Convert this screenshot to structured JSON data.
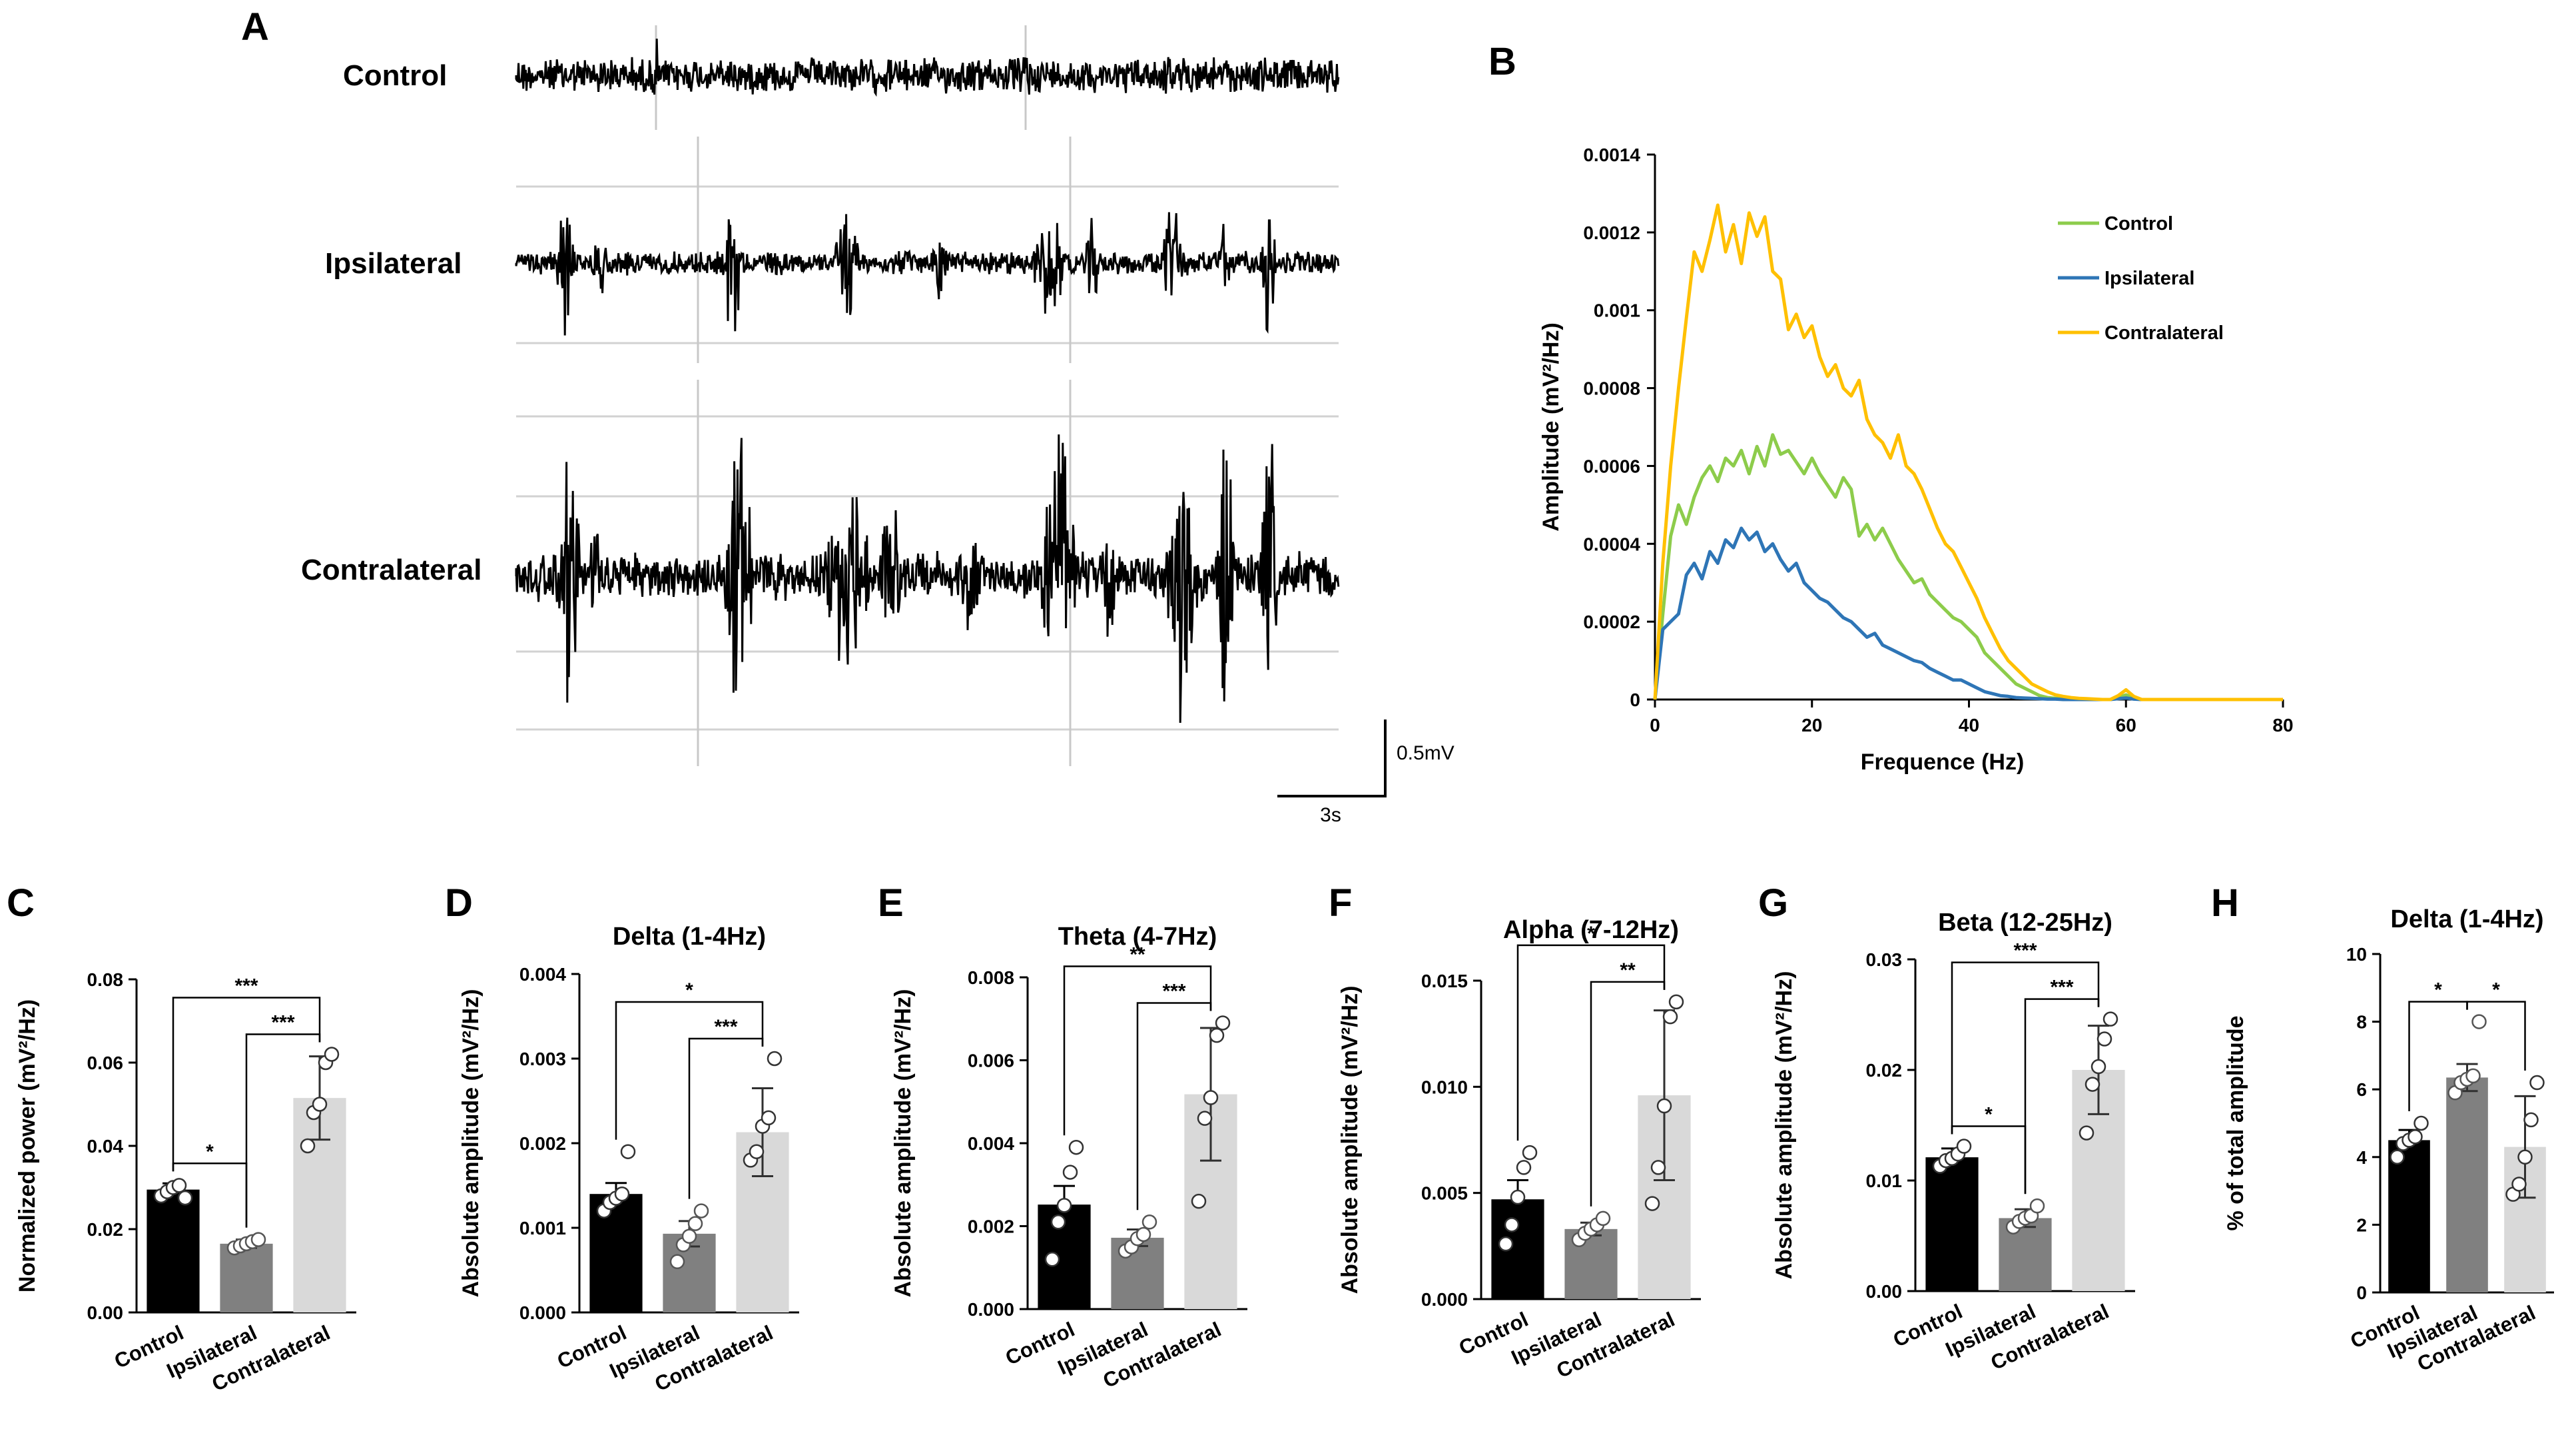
{
  "panels": {
    "A": {
      "letter": "A",
      "traces": [
        "Control",
        "Ipsilateral",
        "Contralateral"
      ],
      "scale_bar": {
        "vertical": "0.5mV",
        "horizontal": "3s"
      }
    },
    "B": {
      "letter": "B",
      "chart_data": {
        "type": "line",
        "title": "",
        "xlabel": "Frequence (Hz)",
        "ylabel": "Amplitude (mV²/Hz)",
        "xlim": [
          0,
          80
        ],
        "ylim": [
          0,
          0.0014
        ],
        "xticks": [
          "0",
          "20",
          "40",
          "60",
          "80"
        ],
        "yticks": [
          "0",
          "0.0002",
          "0.0004",
          "0.0006",
          "0.0008",
          "0.001",
          "0.0012",
          "0.0014"
        ],
        "legend_position": "top-right",
        "x": [
          0,
          1,
          2,
          3,
          4,
          5,
          6,
          7,
          8,
          9,
          10,
          11,
          12,
          13,
          14,
          15,
          16,
          17,
          18,
          19,
          20,
          21,
          22,
          23,
          24,
          25,
          26,
          27,
          28,
          29,
          30,
          31,
          32,
          33,
          34,
          35,
          36,
          37,
          38,
          39,
          40,
          41,
          42,
          43,
          44,
          45,
          46,
          47,
          48,
          49,
          50,
          51,
          52,
          53,
          54,
          55,
          56,
          57,
          58,
          59,
          60,
          61,
          62,
          64,
          66,
          70,
          75,
          80
        ],
        "series": [
          {
            "name": "Control",
            "color": "#8dcc4b",
            "values": [
              0,
              0.00022,
              0.00042,
              0.0005,
              0.00045,
              0.00052,
              0.00057,
              0.0006,
              0.00056,
              0.00062,
              0.0006,
              0.00064,
              0.00058,
              0.00065,
              0.0006,
              0.00068,
              0.00063,
              0.00064,
              0.00061,
              0.00058,
              0.00062,
              0.00058,
              0.00055,
              0.00052,
              0.00057,
              0.00054,
              0.00042,
              0.00045,
              0.00041,
              0.00044,
              0.0004,
              0.00036,
              0.00033,
              0.0003,
              0.00031,
              0.00027,
              0.00025,
              0.00023,
              0.00021,
              0.0002,
              0.00018,
              0.00016,
              0.00012,
              0.0001,
              8e-05,
              6e-05,
              4e-05,
              3e-05,
              2e-05,
              1e-05,
              5e-06,
              3e-06,
              2e-06,
              1e-06,
              1e-06,
              0,
              0,
              0,
              0,
              5e-06,
              1.2e-05,
              4e-06,
              0,
              0,
              0,
              0,
              0,
              0
            ]
          },
          {
            "name": "Ipsilateral",
            "color": "#2e75b6",
            "values": [
              0,
              0.00018,
              0.0002,
              0.00022,
              0.00032,
              0.00035,
              0.00031,
              0.00038,
              0.00035,
              0.00041,
              0.00039,
              0.00044,
              0.00041,
              0.00043,
              0.00038,
              0.0004,
              0.00036,
              0.00033,
              0.00035,
              0.0003,
              0.00028,
              0.00026,
              0.00025,
              0.00023,
              0.00021,
              0.0002,
              0.00018,
              0.00016,
              0.00017,
              0.00014,
              0.00013,
              0.00012,
              0.00011,
              0.0001,
              9.5e-05,
              8e-05,
              7e-05,
              6e-05,
              5e-05,
              5e-05,
              4e-05,
              3e-05,
              2e-05,
              1.5e-05,
              1e-05,
              8e-06,
              5e-06,
              4e-06,
              3e-06,
              2e-06,
              1e-06,
              1e-06,
              0,
              0,
              0,
              0,
              0,
              0,
              0,
              2e-06,
              4e-06,
              1e-06,
              0,
              0,
              0,
              0,
              0,
              0
            ]
          },
          {
            "name": "Contralateral",
            "color": "#ffc000",
            "values": [
              0,
              0.00035,
              0.0006,
              0.0008,
              0.00098,
              0.00115,
              0.0011,
              0.00118,
              0.00127,
              0.00115,
              0.00122,
              0.00112,
              0.00125,
              0.00119,
              0.00124,
              0.0011,
              0.00108,
              0.00095,
              0.00099,
              0.00093,
              0.00096,
              0.00088,
              0.00083,
              0.00086,
              0.0008,
              0.00078,
              0.00082,
              0.00072,
              0.00068,
              0.00066,
              0.00062,
              0.00068,
              0.0006,
              0.00058,
              0.00054,
              0.00049,
              0.00044,
              0.0004,
              0.00038,
              0.00034,
              0.0003,
              0.00026,
              0.00021,
              0.00017,
              0.00013,
              0.0001,
              8e-05,
              6e-05,
              4e-05,
              3e-05,
              2e-05,
              1.2e-05,
              8e-06,
              5e-06,
              3e-06,
              2e-06,
              1e-06,
              0,
              0,
              1e-05,
              2.5e-05,
              8e-06,
              0,
              0,
              0,
              0,
              0,
              0
            ]
          }
        ]
      }
    },
    "C": {
      "letter": "C",
      "chart_data": {
        "type": "bar",
        "title": "",
        "ylabel": "Normalized power (mV²/Hz)",
        "ylim": [
          0,
          0.08
        ],
        "yticks": [
          "0.00",
          "0.02",
          "0.04",
          "0.06",
          "0.08"
        ],
        "categories": [
          "Control",
          "Ipsilateral",
          "Contralateral"
        ],
        "colors": [
          "#000000",
          "#808080",
          "#d9d9d9"
        ],
        "values": [
          0.0295,
          0.0165,
          0.0515
        ],
        "errors": [
          0.0015,
          0.001,
          0.01
        ],
        "points": [
          [
            0.028,
            0.029,
            0.03,
            0.0305,
            0.0275
          ],
          [
            0.0155,
            0.016,
            0.0165,
            0.017,
            0.0175
          ],
          [
            0.04,
            0.048,
            0.05,
            0.06,
            0.062
          ]
        ],
        "significance": [
          {
            "from": 0,
            "to": 1,
            "label": "*"
          },
          {
            "from": 0,
            "to": 2,
            "label": "***"
          },
          {
            "from": 1,
            "to": 2,
            "label": "***"
          }
        ]
      }
    },
    "D": {
      "letter": "D",
      "chart_data": {
        "type": "bar",
        "title": "Delta (1-4Hz)",
        "ylabel": "Absolute amplitude (mV²/Hz)",
        "ylim": [
          0,
          0.004
        ],
        "yticks": [
          "0.000",
          "0.001",
          "0.002",
          "0.003",
          "0.004"
        ],
        "categories": [
          "Control",
          "Ipsilateral",
          "Contralateral"
        ],
        "colors": [
          "#000000",
          "#808080",
          "#d9d9d9"
        ],
        "values": [
          0.0014,
          0.00093,
          0.00213
        ],
        "errors": [
          0.00013,
          0.00015,
          0.00052
        ],
        "points": [
          [
            0.0012,
            0.0013,
            0.00135,
            0.0014,
            0.0019
          ],
          [
            0.0006,
            0.0008,
            0.0009,
            0.00105,
            0.0012
          ],
          [
            0.0018,
            0.0019,
            0.0022,
            0.0023,
            0.003
          ]
        ],
        "significance": [
          {
            "from": 0,
            "to": 2,
            "label": "*"
          },
          {
            "from": 1,
            "to": 2,
            "label": "***"
          }
        ]
      }
    },
    "E": {
      "letter": "E",
      "chart_data": {
        "type": "bar",
        "title": "Theta (4-7Hz)",
        "ylabel": "Absolute amplitude (mV²/Hz)",
        "ylim": [
          0,
          0.008
        ],
        "yticks": [
          "0.000",
          "0.002",
          "0.004",
          "0.006",
          "0.008"
        ],
        "categories": [
          "Control",
          "Ipsilateral",
          "Contralateral"
        ],
        "colors": [
          "#000000",
          "#808080",
          "#d9d9d9"
        ],
        "values": [
          0.00252,
          0.00172,
          0.00518
        ],
        "errors": [
          0.00045,
          0.0002,
          0.0016
        ],
        "points": [
          [
            0.0012,
            0.0021,
            0.0025,
            0.0033,
            0.0039
          ],
          [
            0.0014,
            0.0015,
            0.0017,
            0.0018,
            0.0021
          ],
          [
            0.0026,
            0.0046,
            0.0051,
            0.0066,
            0.0069
          ]
        ],
        "significance": [
          {
            "from": 0,
            "to": 2,
            "label": "**"
          },
          {
            "from": 1,
            "to": 2,
            "label": "***"
          }
        ]
      }
    },
    "F": {
      "letter": "F",
      "chart_data": {
        "type": "bar",
        "title": "Alpha (7-12Hz)",
        "ylabel": "Absolute amplitude (mV²/Hz)",
        "ylim": [
          0,
          0.015
        ],
        "yticks": [
          "0.000",
          "0.005",
          "0.010",
          "0.015"
        ],
        "categories": [
          "Control",
          "Ipsilateral",
          "Contralateral"
        ],
        "colors": [
          "#000000",
          "#808080",
          "#d9d9d9"
        ],
        "values": [
          0.0047,
          0.0033,
          0.0096
        ],
        "errors": [
          0.0009,
          0.0003,
          0.004
        ],
        "points": [
          [
            0.0026,
            0.0035,
            0.0048,
            0.0062,
            0.0069
          ],
          [
            0.0028,
            0.0031,
            0.0033,
            0.0035,
            0.0038
          ],
          [
            0.0045,
            0.0062,
            0.0091,
            0.0133,
            0.014
          ]
        ],
        "significance": [
          {
            "from": 0,
            "to": 2,
            "label": "*"
          },
          {
            "from": 1,
            "to": 2,
            "label": "**"
          }
        ]
      }
    },
    "G": {
      "letter": "G",
      "chart_data": {
        "type": "bar",
        "title": "Beta (12-25Hz)",
        "ylabel": "Absolute amplitude (mV²/Hz)",
        "ylim": [
          0,
          0.03
        ],
        "yticks": [
          "0.00",
          "0.01",
          "0.02",
          "0.03"
        ],
        "categories": [
          "Control",
          "Ipsilateral",
          "Contralateral"
        ],
        "colors": [
          "#000000",
          "#808080",
          "#d9d9d9"
        ],
        "values": [
          0.0121,
          0.0066,
          0.02
        ],
        "errors": [
          0.0008,
          0.0008,
          0.004
        ],
        "points": [
          [
            0.0113,
            0.0118,
            0.012,
            0.0124,
            0.0131
          ],
          [
            0.0058,
            0.0063,
            0.0066,
            0.0068,
            0.0077
          ],
          [
            0.0143,
            0.0187,
            0.0203,
            0.0228,
            0.0246
          ]
        ],
        "significance": [
          {
            "from": 0,
            "to": 1,
            "label": "*"
          },
          {
            "from": 0,
            "to": 2,
            "label": "***"
          },
          {
            "from": 1,
            "to": 2,
            "label": "***"
          }
        ]
      }
    },
    "H": {
      "letter": "H",
      "chart_data": {
        "type": "bar",
        "title": "Delta (1-4Hz)",
        "ylabel": "% of total amplitude",
        "ylim": [
          0,
          10
        ],
        "yticks": [
          "0",
          "2",
          "4",
          "6",
          "8",
          "10"
        ],
        "categories": [
          "Control",
          "Ipsilateral",
          "Contralateral"
        ],
        "colors": [
          "#000000",
          "#808080",
          "#d9d9d9"
        ],
        "values": [
          4.5,
          6.35,
          4.3
        ],
        "errors": [
          0.3,
          0.4,
          1.5
        ],
        "points": [
          [
            4.0,
            4.4,
            4.5,
            4.6,
            5.0
          ],
          [
            5.9,
            6.2,
            6.3,
            6.4,
            8.0
          ],
          [
            2.9,
            3.2,
            4.0,
            5.1,
            6.2
          ]
        ],
        "significance": [
          {
            "from": 0,
            "to": 1,
            "label": "*"
          },
          {
            "from": 1,
            "to": 2,
            "label": "*"
          }
        ]
      }
    }
  }
}
